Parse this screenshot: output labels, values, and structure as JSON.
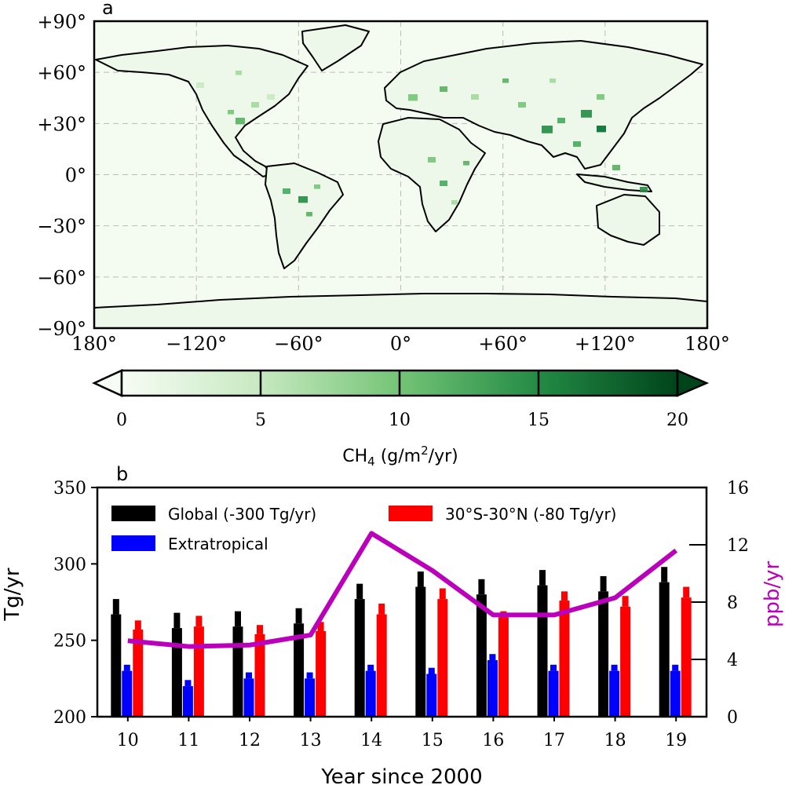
{
  "panel_a": {
    "label": "a",
    "lat_ticks": [
      "+90°",
      "+60°",
      "+30°",
      "0°",
      "−30°",
      "−60°",
      "−90°"
    ],
    "lon_ticks": [
      "180°",
      "−120°",
      "−60°",
      "0°",
      "+60°",
      "+120°",
      "180°"
    ],
    "colorbar": {
      "ticks": [
        "0",
        "5",
        "10",
        "15",
        "20"
      ],
      "label_main": "CH",
      "label_sub": "4",
      "label_units_pre": " (g/m",
      "label_sup": "2",
      "label_units_post": "/yr)"
    }
  },
  "chart_data": [
    {
      "type": "heatmap",
      "description_free": true,
      "xlim": [
        -180,
        180
      ],
      "ylim": [
        -90,
        90
      ],
      "colorbar_range": [
        0,
        20
      ],
      "colormap": [
        "#f7fcf5",
        "#c7e9c0",
        "#74c476",
        "#238b45",
        "#00441b"
      ]
    },
    {
      "type": "bar",
      "label": "b",
      "categories": [
        "10",
        "11",
        "12",
        "13",
        "14",
        "15",
        "16",
        "17",
        "18",
        "19"
      ],
      "xlabel": "Year since 2000",
      "ylabel": "Tg/yr",
      "ylabel_right": "ppb/yr",
      "ylim": [
        200,
        350
      ],
      "ylim_right": [
        0,
        16
      ],
      "yticks": [
        "200",
        "250",
        "300",
        "350"
      ],
      "yticks_right": [
        "0",
        "4",
        "8",
        "12",
        "16"
      ],
      "legend_position": "top",
      "series": [
        {
          "name": "Global (-300 Tg/yr)",
          "color": "#000000",
          "values": [
            267,
            258,
            259,
            261,
            277,
            285,
            280,
            286,
            282,
            288
          ],
          "err": [
            10,
            10,
            10,
            10,
            10,
            10,
            10,
            10,
            10,
            10
          ],
          "offset": -300
        },
        {
          "name": "Extratropical",
          "color": "#0000ff",
          "values": [
            230,
            220,
            225,
            225,
            230,
            228,
            237,
            230,
            230,
            230
          ],
          "err": [
            4,
            4,
            4,
            4,
            4,
            4,
            4,
            4,
            4,
            4
          ]
        },
        {
          "name": "30°S-30°N (-80 Tg/yr)",
          "color": "#ff0000",
          "values": [
            257,
            259,
            254,
            256,
            267,
            277,
            265,
            276,
            272,
            278
          ],
          "err": [
            6,
            7,
            6,
            6,
            7,
            7,
            4,
            6,
            7,
            7
          ],
          "offset": -80
        },
        {
          "name": "ppb/yr",
          "type": "line",
          "color": "#bb00bb",
          "axis": "right",
          "values": [
            5.3,
            4.9,
            5.0,
            5.7,
            12.8,
            10.2,
            7.1,
            7.1,
            8.3,
            11.6
          ]
        }
      ]
    }
  ]
}
